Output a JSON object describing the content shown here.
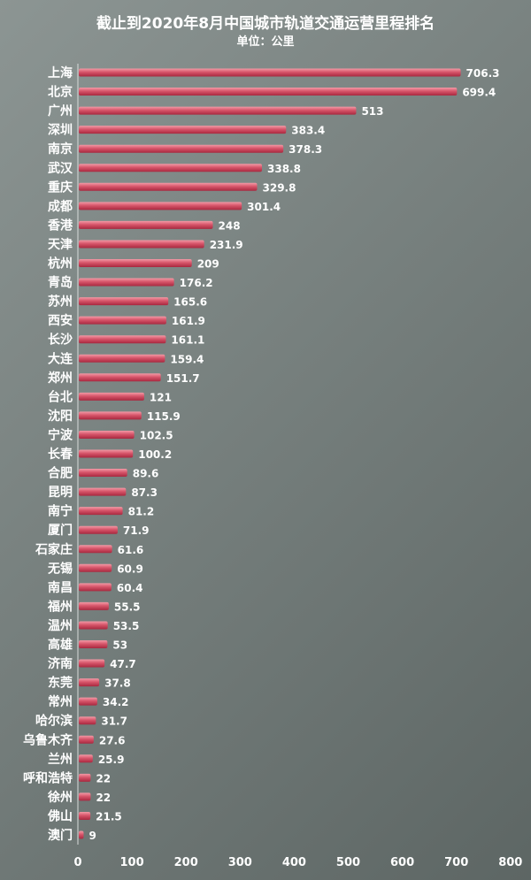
{
  "chart_data": {
    "type": "bar",
    "orientation": "horizontal",
    "title": "截止到2020年8月中国城市轨道交通运营里程排名",
    "subtitle": "单位：公里",
    "xlim": [
      0,
      800
    ],
    "x_ticks": [
      "0",
      "100",
      "200",
      "300",
      "400",
      "500",
      "600",
      "700",
      "800"
    ],
    "grid": false,
    "legend": "none",
    "bar_color": "#d7556a",
    "text_color": "#ffffff",
    "categories": [
      "上海",
      "北京",
      "广州",
      "深圳",
      "南京",
      "武汉",
      "重庆",
      "成都",
      "香港",
      "天津",
      "杭州",
      "青岛",
      "苏州",
      "西安",
      "长沙",
      "大连",
      "郑州",
      "台北",
      "沈阳",
      "宁波",
      "长春",
      "合肥",
      "昆明",
      "南宁",
      "厦门",
      "石家庄",
      "无锡",
      "南昌",
      "福州",
      "温州",
      "高雄",
      "济南",
      "东莞",
      "常州",
      "哈尔滨",
      "乌鲁木齐",
      "兰州",
      "呼和浩特",
      "徐州",
      "佛山",
      "澳门"
    ],
    "values": [
      706.3,
      699.4,
      513,
      383.4,
      378.3,
      338.8,
      329.8,
      301.4,
      248,
      231.9,
      209,
      176.2,
      165.6,
      161.9,
      161.1,
      159.4,
      151.7,
      121,
      115.9,
      102.5,
      100.2,
      89.6,
      87.3,
      81.2,
      71.9,
      61.6,
      60.9,
      60.4,
      55.5,
      53.5,
      53,
      47.7,
      37.8,
      34.2,
      31.7,
      27.6,
      25.9,
      22,
      22,
      21.5,
      9
    ],
    "value_labels": [
      "706.3",
      "699.4",
      "513",
      "383.4",
      "378.3",
      "338.8",
      "329.8",
      "301.4",
      "248",
      "231.9",
      "209",
      "176.2",
      "165.6",
      "161.9",
      "161.1",
      "159.4",
      "151.7",
      "121",
      "115.9",
      "102.5",
      "100.2",
      "89.6",
      "87.3",
      "81.2",
      "71.9",
      "61.6",
      "60.9",
      "60.4",
      "55.5",
      "53.5",
      "53",
      "47.7",
      "37.8",
      "34.2",
      "31.7",
      "27.6",
      "25.9",
      "22",
      "22",
      "21.5",
      "9"
    ]
  }
}
